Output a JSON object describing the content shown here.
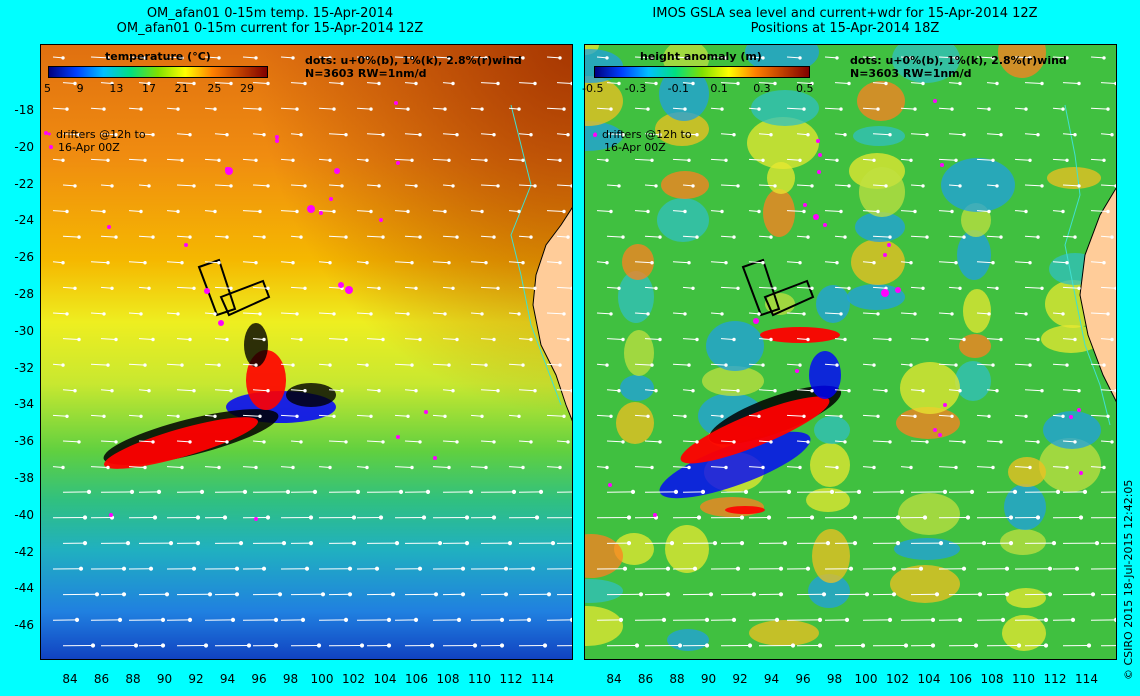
{
  "left_panel": {
    "title_line1": "OM_afan01 0-15m temp. 15-Apr-2014",
    "title_line2": "OM_afan01 0-15m current for 15-Apr-2014 12Z",
    "legend_title": "temperature (°C)",
    "colorbar_ticks": [
      "5",
      "9",
      "13",
      "17",
      "21",
      "25",
      "29"
    ],
    "dots_note": "dots: u+0%(b), 1%(k), 2.8%(r)wind",
    "stats_note": "N=3603 RW=1nm/d",
    "drifters_line1": "drifters @12h to",
    "drifters_line2": "16-Apr 00Z"
  },
  "right_panel": {
    "title_line1": "IMOS GSLA sea level and current+wdr for 15-Apr-2014 12Z",
    "title_line2": "Positions at 15-Apr-2014 18Z",
    "legend_title": "height anomaly (m)",
    "colorbar_ticks": [
      "-0.5",
      "-0.3",
      "-0.1",
      "0.1",
      "0.3",
      "0.5"
    ],
    "dots_note": "dots: u+0%(b), 1%(k), 2.8%(r)wind",
    "stats_note": "N=3603 RW=1nm/d",
    "drifters_line1": "drifters @12h to",
    "drifters_line2": "16-Apr 00Z"
  },
  "axes": {
    "lat_labels": [
      "-18",
      "-20",
      "-22",
      "-24",
      "-26",
      "-28",
      "-30",
      "-32",
      "-34",
      "-36",
      "-38",
      "-40",
      "-42",
      "-44",
      "-46"
    ],
    "lon_labels": [
      "84",
      "86",
      "88",
      "90",
      "92",
      "94",
      "96",
      "98",
      "100",
      "102",
      "104",
      "106",
      "108",
      "110",
      "112",
      "114"
    ]
  },
  "copyright": "© CSIRO 2015   18-Jul-2015 12:42:05",
  "colors": {
    "background": "#00ffff",
    "drift_blue": "#0000ff",
    "drift_black": "#000000",
    "drift_red": "#ff0000",
    "drifters": "#ff00ff",
    "arrows": "#ffffff",
    "land": "#ffcc99",
    "coast": "#40e0d0"
  }
}
